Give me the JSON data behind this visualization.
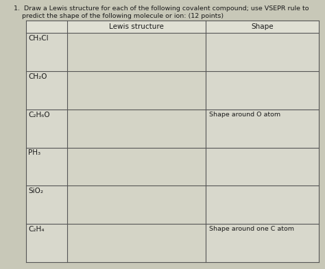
{
  "title_line1": "1.  Draw a Lewis structure for each of the following covalent compound; use VSEPR rule to",
  "title_line2": "predict the shape of the following molecule or ion: (12 points)",
  "col_headers": [
    "Lewis structure",
    "Shape"
  ],
  "compounds": [
    "CH₃Cl",
    "CH₂O",
    "C₂H₆O",
    "PH₃",
    "SiO₂",
    "C₂H₄"
  ],
  "shape_notes": {
    "C₂H₆O": "Shape around O atom",
    "C₂H₄": "Shape around one C atom"
  },
  "bg_color": "#c8c8b8",
  "table_cell_bg": "#dcdcd0",
  "table_cell_bg2": "#d0d0c4",
  "text_color": "#1a1a1a",
  "line_color": "#555555",
  "font_size_title": 6.8,
  "font_size_header": 7.5,
  "font_size_compound": 7.5,
  "font_size_note": 6.8
}
